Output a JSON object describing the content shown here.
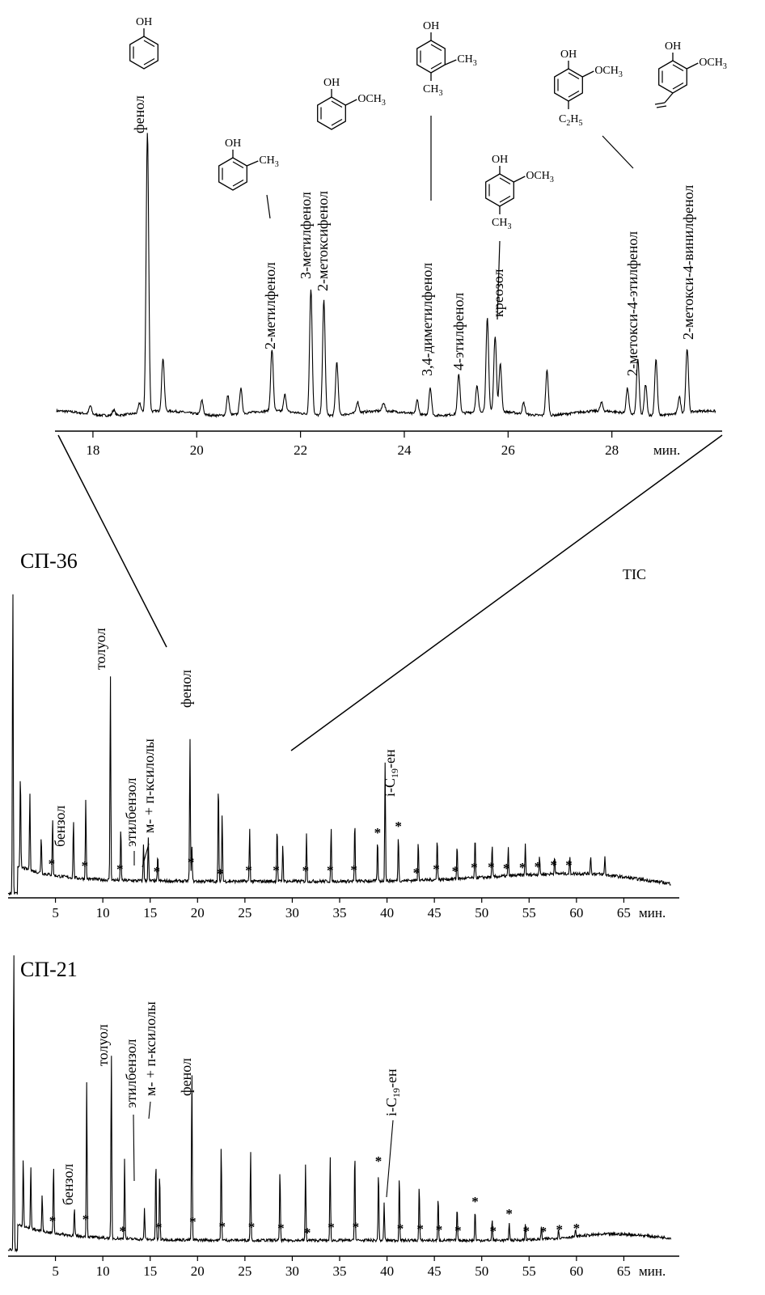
{
  "chart_data": [
    {
      "type": "line",
      "panel": "zoom",
      "x_unit_label": "мин.",
      "xlim": [
        17.3,
        30.0
      ],
      "xticks": [
        18,
        20,
        22,
        24,
        26,
        28
      ],
      "peaks": [
        {
          "x": 17.95,
          "h": 0.03
        },
        {
          "x": 18.4,
          "h": 0.02
        },
        {
          "x": 18.9,
          "h": 0.035
        },
        {
          "x": 19.05,
          "h": 1.0
        },
        {
          "x": 19.35,
          "h": 0.19
        },
        {
          "x": 20.1,
          "h": 0.05
        },
        {
          "x": 20.6,
          "h": 0.07
        },
        {
          "x": 20.85,
          "h": 0.09
        },
        {
          "x": 21.45,
          "h": 0.22
        },
        {
          "x": 21.7,
          "h": 0.06
        },
        {
          "x": 22.2,
          "h": 0.45
        },
        {
          "x": 22.45,
          "h": 0.41
        },
        {
          "x": 22.7,
          "h": 0.19
        },
        {
          "x": 23.1,
          "h": 0.04
        },
        {
          "x": 23.6,
          "h": 0.03
        },
        {
          "x": 24.25,
          "h": 0.05
        },
        {
          "x": 24.5,
          "h": 0.1
        },
        {
          "x": 25.05,
          "h": 0.14
        },
        {
          "x": 25.4,
          "h": 0.09
        },
        {
          "x": 25.6,
          "h": 0.33
        },
        {
          "x": 25.75,
          "h": 0.27
        },
        {
          "x": 25.85,
          "h": 0.17
        },
        {
          "x": 26.3,
          "h": 0.04
        },
        {
          "x": 26.75,
          "h": 0.16
        },
        {
          "x": 27.8,
          "h": 0.03
        },
        {
          "x": 28.3,
          "h": 0.09
        },
        {
          "x": 28.5,
          "h": 0.2
        },
        {
          "x": 28.65,
          "h": 0.11
        },
        {
          "x": 28.85,
          "h": 0.2
        },
        {
          "x": 29.3,
          "h": 0.06
        },
        {
          "x": 29.45,
          "h": 0.23
        }
      ],
      "annotations": [
        {
          "label": "фенол",
          "x": 19.05
        },
        {
          "label": "2-метилфенол",
          "x": 21.45
        },
        {
          "label": "3-метилфенол",
          "x": 22.2
        },
        {
          "label": "2-метоксифенол",
          "x": 22.45
        },
        {
          "label": "3,4-диметилфенол",
          "x": 24.5
        },
        {
          "label": "4-этилфенол",
          "x": 25.05
        },
        {
          "label": "креозол",
          "x": 25.75
        },
        {
          "label": "2-метокси-4-этилфенол",
          "x": 28.3
        },
        {
          "label": "2-метокси-4-винилфенол",
          "x": 29.45
        }
      ]
    },
    {
      "type": "line",
      "panel": "СП-36",
      "title": "СП-36",
      "legend": "TIC",
      "x_unit_label": "мин.",
      "xlim": [
        0,
        70
      ],
      "xticks": [
        5,
        10,
        15,
        20,
        25,
        30,
        35,
        40,
        45,
        50,
        55,
        60,
        65
      ],
      "peaks": [
        {
          "x": 0.5,
          "h": 1.0
        },
        {
          "x": 1.3,
          "h": 0.3
        },
        {
          "x": 2.3,
          "h": 0.25
        },
        {
          "x": 3.5,
          "h": 0.12
        },
        {
          "x": 4.7,
          "h": 0.18
        },
        {
          "x": 6.9,
          "h": 0.19
        },
        {
          "x": 8.2,
          "h": 0.26
        },
        {
          "x": 10.8,
          "h": 0.66
        },
        {
          "x": 11.9,
          "h": 0.17
        },
        {
          "x": 14.3,
          "h": 0.12
        },
        {
          "x": 14.8,
          "h": 0.14
        },
        {
          "x": 15.8,
          "h": 0.08
        },
        {
          "x": 19.2,
          "h": 0.46
        },
        {
          "x": 19.4,
          "h": 0.12
        },
        {
          "x": 22.2,
          "h": 0.32
        },
        {
          "x": 22.6,
          "h": 0.22
        },
        {
          "x": 25.5,
          "h": 0.17
        },
        {
          "x": 28.4,
          "h": 0.18
        },
        {
          "x": 29.0,
          "h": 0.12
        },
        {
          "x": 31.5,
          "h": 0.15
        },
        {
          "x": 34.1,
          "h": 0.17
        },
        {
          "x": 36.6,
          "h": 0.19
        },
        {
          "x": 39.0,
          "h": 0.13
        },
        {
          "x": 39.8,
          "h": 0.38
        },
        {
          "x": 41.2,
          "h": 0.15
        },
        {
          "x": 43.3,
          "h": 0.13
        },
        {
          "x": 45.3,
          "h": 0.14
        },
        {
          "x": 47.4,
          "h": 0.11
        },
        {
          "x": 49.3,
          "h": 0.13
        },
        {
          "x": 51.1,
          "h": 0.1
        },
        {
          "x": 52.8,
          "h": 0.09
        },
        {
          "x": 54.6,
          "h": 0.1
        },
        {
          "x": 56.1,
          "h": 0.06
        },
        {
          "x": 57.7,
          "h": 0.06
        },
        {
          "x": 59.3,
          "h": 0.05
        },
        {
          "x": 61.5,
          "h": 0.06
        },
        {
          "x": 63.0,
          "h": 0.06
        }
      ],
      "stars": [
        4.6,
        8.1,
        11.8,
        15.7,
        19.3,
        22.4,
        25.4,
        28.3,
        31.4,
        34.0,
        36.5,
        39.0,
        41.2,
        43.1,
        45.2,
        47.2,
        49.2,
        51.0,
        52.6,
        54.3,
        55.9,
        57.6,
        59.2
      ],
      "annotations": [
        {
          "label": "бензол",
          "x": 6.9
        },
        {
          "label": "толуол",
          "x": 10.8
        },
        {
          "label": "этилбензол",
          "x": 14.3
        },
        {
          "label": "м- + п-ксилолы",
          "x": 14.8
        },
        {
          "label": "фенол",
          "x": 19.2
        },
        {
          "label": "i-C",
          "sub": "19",
          "suffix": "-ен",
          "x": 39.8
        }
      ]
    },
    {
      "type": "line",
      "panel": "СП-21",
      "title": "СП-21",
      "x_unit_label": "мин.",
      "xlim": [
        0,
        70
      ],
      "xticks": [
        5,
        10,
        15,
        20,
        25,
        30,
        35,
        40,
        45,
        50,
        55,
        60,
        65
      ],
      "peaks": [
        {
          "x": 0.6,
          "h": 1.0
        },
        {
          "x": 1.6,
          "h": 0.22
        },
        {
          "x": 2.4,
          "h": 0.2
        },
        {
          "x": 3.6,
          "h": 0.12
        },
        {
          "x": 4.8,
          "h": 0.22
        },
        {
          "x": 7.0,
          "h": 0.09
        },
        {
          "x": 8.3,
          "h": 0.5
        },
        {
          "x": 10.9,
          "h": 0.6
        },
        {
          "x": 12.3,
          "h": 0.26
        },
        {
          "x": 14.4,
          "h": 0.1
        },
        {
          "x": 15.6,
          "h": 0.26
        },
        {
          "x": 16.0,
          "h": 0.22
        },
        {
          "x": 19.4,
          "h": 0.55
        },
        {
          "x": 22.5,
          "h": 0.31
        },
        {
          "x": 25.6,
          "h": 0.29
        },
        {
          "x": 28.7,
          "h": 0.23
        },
        {
          "x": 31.4,
          "h": 0.24
        },
        {
          "x": 34.0,
          "h": 0.27
        },
        {
          "x": 36.6,
          "h": 0.29
        },
        {
          "x": 39.1,
          "h": 0.23
        },
        {
          "x": 39.7,
          "h": 0.12
        },
        {
          "x": 41.3,
          "h": 0.21
        },
        {
          "x": 43.4,
          "h": 0.18
        },
        {
          "x": 45.4,
          "h": 0.14
        },
        {
          "x": 47.4,
          "h": 0.11
        },
        {
          "x": 49.3,
          "h": 0.1
        },
        {
          "x": 51.1,
          "h": 0.07
        },
        {
          "x": 52.9,
          "h": 0.06
        },
        {
          "x": 54.6,
          "h": 0.05
        },
        {
          "x": 56.3,
          "h": 0.04
        },
        {
          "x": 58.1,
          "h": 0.03
        },
        {
          "x": 59.9,
          "h": 0.02
        }
      ],
      "stars": [
        4.7,
        8.2,
        12.1,
        15.9,
        19.5,
        22.6,
        25.7,
        28.8,
        31.6,
        34.1,
        36.7,
        39.1,
        41.4,
        43.5,
        45.5,
        47.5,
        49.3,
        51.2,
        52.9,
        54.7,
        56.5,
        58.2,
        60.0
      ],
      "annotations": [
        {
          "label": "бензол",
          "x": 7.0
        },
        {
          "label": "толуол",
          "x": 10.9
        },
        {
          "label": "этилбензол",
          "x": 14.4
        },
        {
          "label": "м- + п-ксилолы",
          "x": 15.6
        },
        {
          "label": "фенол",
          "x": 19.4
        },
        {
          "label": "i-C",
          "sub": "19",
          "suffix": "-ен",
          "x": 39.7
        }
      ]
    }
  ],
  "structures": {
    "OH": "OH",
    "CH3": "CH",
    "OCH3": "OCH",
    "C2H5_a": "C",
    "C2H5_b": "H",
    "sub3": "3",
    "sub2": "2",
    "sub5": "5"
  },
  "star_symbol": "*"
}
